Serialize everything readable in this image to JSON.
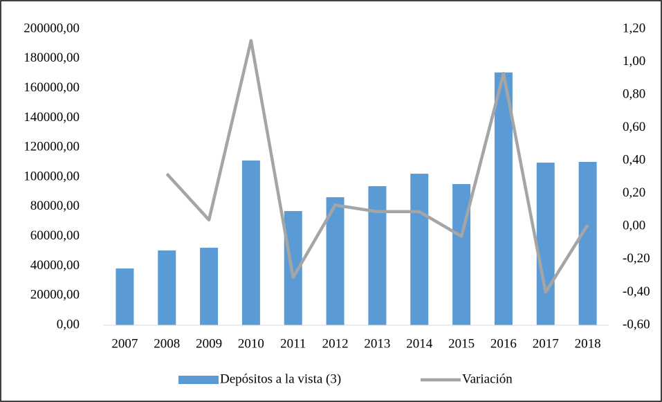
{
  "chart_data": {
    "type": "bar_line",
    "categories": [
      "2007",
      "2008",
      "2009",
      "2010",
      "2011",
      "2012",
      "2013",
      "2014",
      "2015",
      "2016",
      "2017",
      "2018"
    ],
    "series": [
      {
        "name": "Depósitos a la vista (3)",
        "type": "bar",
        "color": "#5b9bd5",
        "values": [
          38300,
          50500,
          52300,
          111200,
          77100,
          86400,
          93900,
          102300,
          95300,
          170700,
          109800,
          110300
        ]
      },
      {
        "name": "Variación",
        "type": "line",
        "axis": "y2",
        "color": "#a5a5a5",
        "values": [
          null,
          0.32,
          0.04,
          1.13,
          -0.31,
          0.13,
          0.09,
          0.09,
          -0.06,
          0.93,
          -0.4,
          0.01
        ]
      }
    ],
    "ylim": [
      0,
      200000
    ],
    "yticks": [
      {
        "value": 0,
        "label": "0,00"
      },
      {
        "value": 20000,
        "label": "20000,00"
      },
      {
        "value": 40000,
        "label": "40000,00"
      },
      {
        "value": 60000,
        "label": "60000,00"
      },
      {
        "value": 80000,
        "label": "80000,00"
      },
      {
        "value": 100000,
        "label": "100000,00"
      },
      {
        "value": 120000,
        "label": "120000,00"
      },
      {
        "value": 140000,
        "label": "140000,00"
      },
      {
        "value": 160000,
        "label": "160000,00"
      },
      {
        "value": 180000,
        "label": "180000,00"
      },
      {
        "value": 200000,
        "label": "200000,00"
      }
    ],
    "y2lim": [
      -0.6,
      1.2
    ],
    "y2ticks": [
      {
        "value": -0.6,
        "label": "-0,60"
      },
      {
        "value": -0.4,
        "label": "-0,40"
      },
      {
        "value": -0.2,
        "label": "-0,20"
      },
      {
        "value": 0,
        "label": "0,00"
      },
      {
        "value": 0.2,
        "label": "0,20"
      },
      {
        "value": 0.4,
        "label": "0,40"
      },
      {
        "value": 0.6,
        "label": "0,60"
      },
      {
        "value": 0.8,
        "label": "0,80"
      },
      {
        "value": 1.0,
        "label": "1,00"
      },
      {
        "value": 1.2,
        "label": "1,20"
      }
    ],
    "legend": "bottom"
  }
}
